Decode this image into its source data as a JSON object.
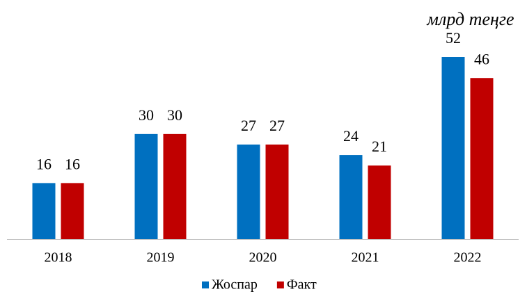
{
  "chart_data": {
    "type": "bar",
    "unit_label": "млрд теңге",
    "categories": [
      "2018",
      "2019",
      "2020",
      "2021",
      "2022"
    ],
    "series": [
      {
        "name": "Жоспар",
        "color": "#0070c0",
        "values": [
          16,
          30,
          27,
          24,
          52
        ]
      },
      {
        "name": "Факт",
        "color": "#c00000",
        "values": [
          16,
          30,
          27,
          21,
          46
        ]
      }
    ],
    "legend": "bottom"
  }
}
